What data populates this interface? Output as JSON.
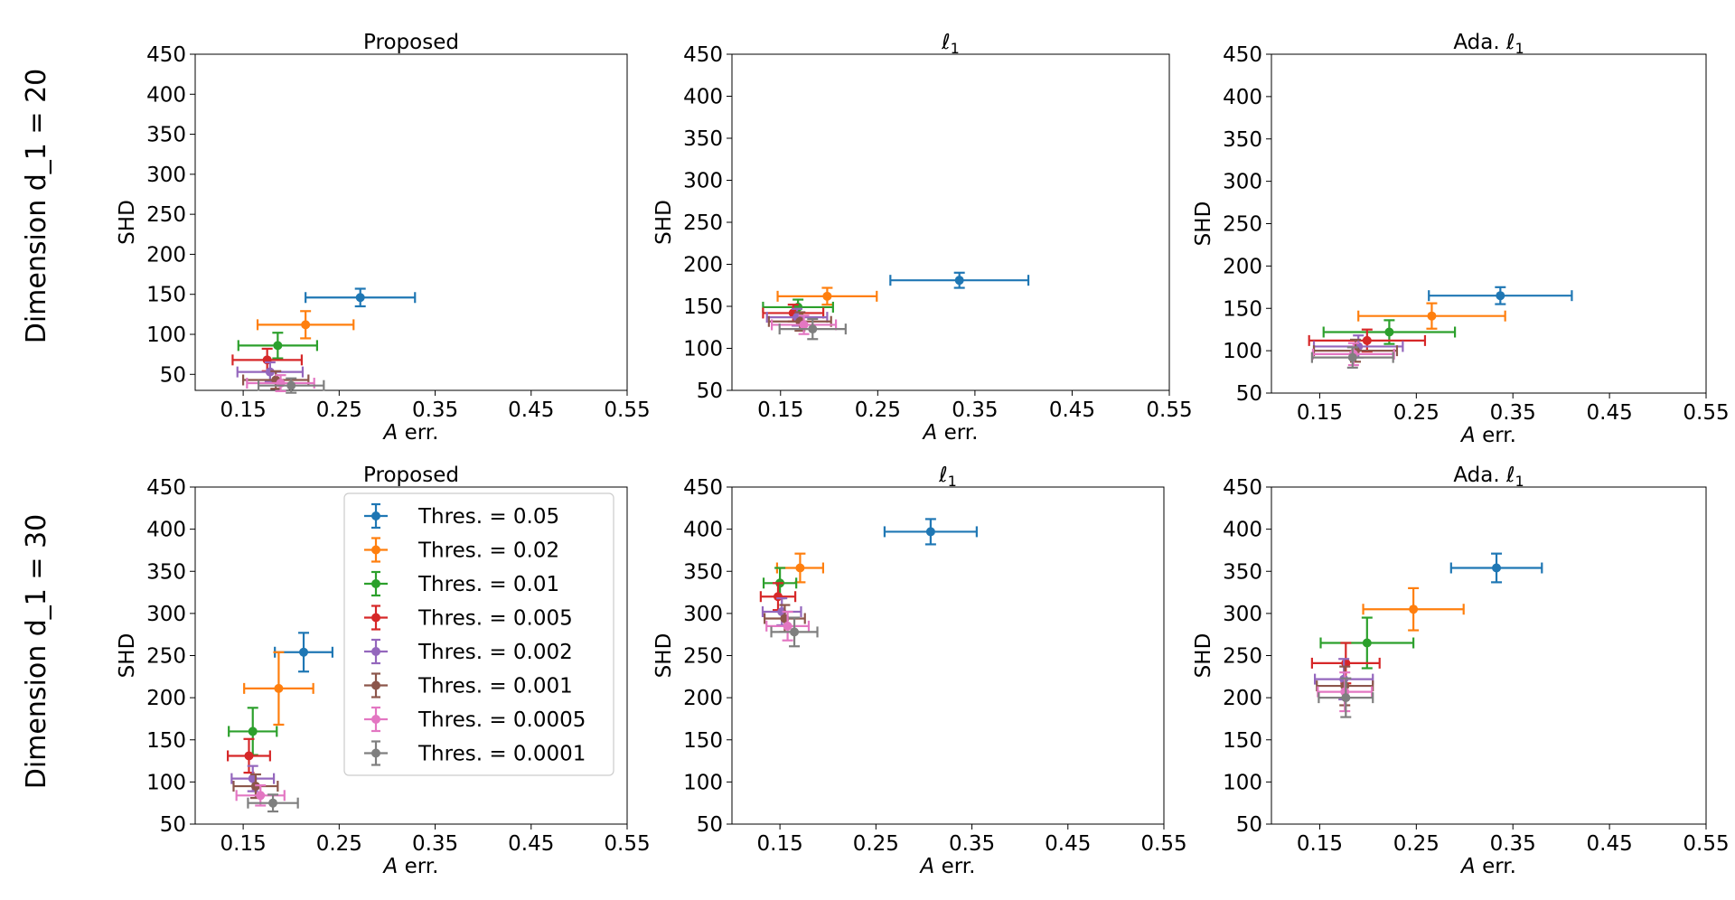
{
  "row_labels": [
    "Dimension d_1 = 20",
    "Dimension d_1 = 30"
  ],
  "legend": {
    "placement": "upper-right",
    "entries": [
      {
        "label": "Thres. = 0.05",
        "color": "#1f77b4"
      },
      {
        "label": "Thres. = 0.02",
        "color": "#ff7f0e"
      },
      {
        "label": "Thres. = 0.01",
        "color": "#2ca02c"
      },
      {
        "label": "Thres. = 0.005",
        "color": "#d62728"
      },
      {
        "label": "Thres. = 0.002",
        "color": "#9467bd"
      },
      {
        "label": "Thres. = 0.001",
        "color": "#8c564b"
      },
      {
        "label": "Thres. = 0.0005",
        "color": "#e377c2"
      },
      {
        "label": "Thres. = 0.0001",
        "color": "#7f7f7f"
      }
    ]
  },
  "chart_data": [
    {
      "type": "scatter",
      "title": "Proposed",
      "xlabel": "A err.",
      "ylabel": "SHD",
      "xlim": [
        0.1,
        0.55
      ],
      "ylim": [
        30,
        450
      ],
      "xticks": [
        0.15,
        0.25,
        0.35,
        0.45,
        0.55
      ],
      "yticks": [
        50,
        100,
        150,
        200,
        250,
        300,
        350,
        400,
        450
      ],
      "series": [
        {
          "name": "Thres. = 0.05",
          "x": 0.272,
          "y": 146,
          "xerr": 0.057,
          "yerr": 11
        },
        {
          "name": "Thres. = 0.02",
          "x": 0.215,
          "y": 112,
          "xerr": 0.05,
          "yerr": 17
        },
        {
          "name": "Thres. = 0.01",
          "x": 0.186,
          "y": 86,
          "xerr": 0.041,
          "yerr": 16
        },
        {
          "name": "Thres. = 0.005",
          "x": 0.175,
          "y": 68,
          "xerr": 0.036,
          "yerr": 14
        },
        {
          "name": "Thres. = 0.002",
          "x": 0.178,
          "y": 53,
          "xerr": 0.034,
          "yerr": 12
        },
        {
          "name": "Thres. = 0.001",
          "x": 0.184,
          "y": 43,
          "xerr": 0.034,
          "yerr": 11
        },
        {
          "name": "Thres. = 0.0005",
          "x": 0.189,
          "y": 39,
          "xerr": 0.035,
          "yerr": 10
        },
        {
          "name": "Thres. = 0.0001",
          "x": 0.2,
          "y": 36,
          "xerr": 0.034,
          "yerr": 9
        }
      ]
    },
    {
      "type": "scatter",
      "title": "ℓ1",
      "xlabel": "A err.",
      "ylabel": "SHD",
      "xlim": [
        0.1,
        0.55
      ],
      "ylim": [
        50,
        450
      ],
      "xticks": [
        0.15,
        0.25,
        0.35,
        0.45,
        0.55
      ],
      "yticks": [
        50,
        100,
        150,
        200,
        250,
        300,
        350,
        400,
        450
      ],
      "series": [
        {
          "name": "Thres. = 0.05",
          "x": 0.334,
          "y": 181,
          "xerr": 0.071,
          "yerr": 9
        },
        {
          "name": "Thres. = 0.02",
          "x": 0.198,
          "y": 162,
          "xerr": 0.051,
          "yerr": 10
        },
        {
          "name": "Thres. = 0.01",
          "x": 0.168,
          "y": 149,
          "xerr": 0.036,
          "yerr": 9
        },
        {
          "name": "Thres. = 0.005",
          "x": 0.163,
          "y": 142,
          "xerr": 0.031,
          "yerr": 10
        },
        {
          "name": "Thres. = 0.002",
          "x": 0.167,
          "y": 137,
          "xerr": 0.031,
          "yerr": 10
        },
        {
          "name": "Thres. = 0.001",
          "x": 0.17,
          "y": 132,
          "xerr": 0.032,
          "yerr": 11
        },
        {
          "name": "Thres. = 0.0005",
          "x": 0.174,
          "y": 128,
          "xerr": 0.033,
          "yerr": 11
        },
        {
          "name": "Thres. = 0.0001",
          "x": 0.183,
          "y": 123,
          "xerr": 0.034,
          "yerr": 12
        }
      ]
    },
    {
      "type": "scatter",
      "title": "Ada. ℓ1",
      "xlabel": "A err.",
      "ylabel": "SHD",
      "xlim": [
        0.1,
        0.55
      ],
      "ylim": [
        50,
        450
      ],
      "xticks": [
        0.15,
        0.25,
        0.35,
        0.45,
        0.55
      ],
      "yticks": [
        50,
        100,
        150,
        200,
        250,
        300,
        350,
        400,
        450
      ],
      "series": [
        {
          "name": "Thres. = 0.05",
          "x": 0.337,
          "y": 165,
          "xerr": 0.074,
          "yerr": 10
        },
        {
          "name": "Thres. = 0.02",
          "x": 0.266,
          "y": 141,
          "xerr": 0.076,
          "yerr": 15
        },
        {
          "name": "Thres. = 0.01",
          "x": 0.222,
          "y": 122,
          "xerr": 0.068,
          "yerr": 14
        },
        {
          "name": "Thres. = 0.005",
          "x": 0.199,
          "y": 112,
          "xerr": 0.06,
          "yerr": 13
        },
        {
          "name": "Thres. = 0.002",
          "x": 0.19,
          "y": 105,
          "xerr": 0.046,
          "yerr": 13
        },
        {
          "name": "Thres. = 0.001",
          "x": 0.187,
          "y": 100,
          "xerr": 0.043,
          "yerr": 13
        },
        {
          "name": "Thres. = 0.0005",
          "x": 0.185,
          "y": 96,
          "xerr": 0.042,
          "yerr": 13
        },
        {
          "name": "Thres. = 0.0001",
          "x": 0.184,
          "y": 92,
          "xerr": 0.042,
          "yerr": 12
        }
      ]
    },
    {
      "type": "scatter",
      "title": "Proposed",
      "xlabel": "A err.",
      "ylabel": "SHD",
      "xlim": [
        0.1,
        0.55
      ],
      "ylim": [
        50,
        450
      ],
      "xticks": [
        0.15,
        0.25,
        0.35,
        0.45,
        0.55
      ],
      "yticks": [
        50,
        100,
        150,
        200,
        250,
        300,
        350,
        400,
        450
      ],
      "series": [
        {
          "name": "Thres. = 0.05",
          "x": 0.213,
          "y": 254,
          "xerr": 0.03,
          "yerr": 23
        },
        {
          "name": "Thres. = 0.02",
          "x": 0.187,
          "y": 211,
          "xerr": 0.036,
          "yerr": 43
        },
        {
          "name": "Thres. = 0.01",
          "x": 0.16,
          "y": 160,
          "xerr": 0.025,
          "yerr": 28
        },
        {
          "name": "Thres. = 0.005",
          "x": 0.156,
          "y": 131,
          "xerr": 0.022,
          "yerr": 20
        },
        {
          "name": "Thres. = 0.002",
          "x": 0.16,
          "y": 104,
          "xerr": 0.022,
          "yerr": 15
        },
        {
          "name": "Thres. = 0.001",
          "x": 0.163,
          "y": 95,
          "xerr": 0.023,
          "yerr": 14
        },
        {
          "name": "Thres. = 0.0005",
          "x": 0.168,
          "y": 84,
          "xerr": 0.025,
          "yerr": 12
        },
        {
          "name": "Thres. = 0.0001",
          "x": 0.181,
          "y": 75,
          "xerr": 0.026,
          "yerr": 10
        }
      ]
    },
    {
      "type": "scatter",
      "title": "ℓ1",
      "xlabel": "A err.",
      "ylabel": "SHD",
      "xlim": [
        0.1,
        0.55
      ],
      "ylim": [
        50,
        450
      ],
      "xticks": [
        0.15,
        0.25,
        0.35,
        0.45,
        0.55
      ],
      "yticks": [
        50,
        100,
        150,
        200,
        250,
        300,
        350,
        400,
        450
      ],
      "series": [
        {
          "name": "Thres. = 0.05",
          "x": 0.307,
          "y": 397,
          "xerr": 0.048,
          "yerr": 15
        },
        {
          "name": "Thres. = 0.02",
          "x": 0.171,
          "y": 354,
          "xerr": 0.024,
          "yerr": 17
        },
        {
          "name": "Thres. = 0.01",
          "x": 0.15,
          "y": 336,
          "xerr": 0.017,
          "yerr": 18
        },
        {
          "name": "Thres. = 0.005",
          "x": 0.148,
          "y": 320,
          "xerr": 0.018,
          "yerr": 16
        },
        {
          "name": "Thres. = 0.002",
          "x": 0.152,
          "y": 302,
          "xerr": 0.02,
          "yerr": 16
        },
        {
          "name": "Thres. = 0.001",
          "x": 0.155,
          "y": 294,
          "xerr": 0.021,
          "yerr": 16
        },
        {
          "name": "Thres. = 0.0005",
          "x": 0.158,
          "y": 285,
          "xerr": 0.022,
          "yerr": 17
        },
        {
          "name": "Thres. = 0.0001",
          "x": 0.165,
          "y": 278,
          "xerr": 0.024,
          "yerr": 17
        }
      ]
    },
    {
      "type": "scatter",
      "title": "Ada. ℓ1",
      "xlabel": "A err.",
      "ylabel": "SHD",
      "xlim": [
        0.1,
        0.55
      ],
      "ylim": [
        50,
        450
      ],
      "xticks": [
        0.15,
        0.25,
        0.35,
        0.45,
        0.55
      ],
      "yticks": [
        50,
        100,
        150,
        200,
        250,
        300,
        350,
        400,
        450
      ],
      "series": [
        {
          "name": "Thres. = 0.05",
          "x": 0.333,
          "y": 354,
          "xerr": 0.047,
          "yerr": 17
        },
        {
          "name": "Thres. = 0.02",
          "x": 0.247,
          "y": 305,
          "xerr": 0.052,
          "yerr": 25
        },
        {
          "name": "Thres. = 0.01",
          "x": 0.199,
          "y": 265,
          "xerr": 0.048,
          "yerr": 30
        },
        {
          "name": "Thres. = 0.005",
          "x": 0.177,
          "y": 241,
          "xerr": 0.035,
          "yerr": 24
        },
        {
          "name": "Thres. = 0.002",
          "x": 0.175,
          "y": 222,
          "xerr": 0.03,
          "yerr": 24
        },
        {
          "name": "Thres. = 0.001",
          "x": 0.176,
          "y": 214,
          "xerr": 0.029,
          "yerr": 23
        },
        {
          "name": "Thres. = 0.0005",
          "x": 0.176,
          "y": 207,
          "xerr": 0.028,
          "yerr": 23
        },
        {
          "name": "Thres. = 0.0001",
          "x": 0.177,
          "y": 200,
          "xerr": 0.028,
          "yerr": 23
        }
      ]
    }
  ]
}
